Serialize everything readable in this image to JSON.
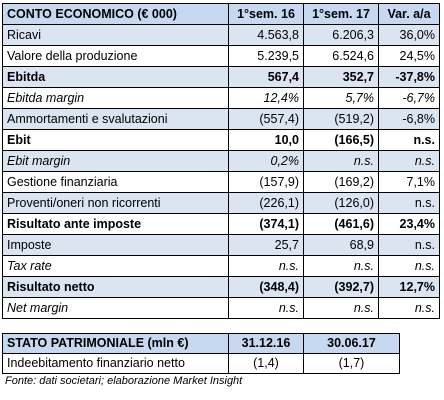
{
  "conto_economico": {
    "header": [
      "CONTO ECONOMICO (€ 000)",
      "1°sem. 16",
      "1°sem. 17",
      "Var. a/a"
    ],
    "rows": [
      {
        "label": "Ricavi",
        "h1_16": "4.563,8",
        "h1_17": "6.206,3",
        "var": "36,0%",
        "style": "blue"
      },
      {
        "label": "Valore della produzione",
        "h1_16": "5.239,5",
        "h1_17": "6.524,6",
        "var": "24,5%",
        "style": "white"
      },
      {
        "label": "Ebitda",
        "h1_16": "567,4",
        "h1_17": "352,7",
        "var": "-37,8%",
        "style": "blue-bold"
      },
      {
        "label": "Ebitda margin",
        "h1_16": "12,4%",
        "h1_17": "5,7%",
        "var": "-6,7%",
        "style": "white-italic"
      },
      {
        "label": "Ammortamenti e svalutazioni",
        "h1_16": "(557,4)",
        "h1_17": "(519,2)",
        "var": "-6,8%",
        "style": "blue"
      },
      {
        "label": "Ebit",
        "h1_16": "10,0",
        "h1_17": "(166,5)",
        "var": "n.s.",
        "style": "white-bold"
      },
      {
        "label": "Ebit margin",
        "h1_16": "0,2%",
        "h1_17": "n.s.",
        "var": "n.s.",
        "style": "blue-italic"
      },
      {
        "label": "Gestione finanziaria",
        "h1_16": "(157,9)",
        "h1_17": "(169,2)",
        "var": "7,1%",
        "style": "white"
      },
      {
        "label": "Proventi/oneri non ricorrenti",
        "h1_16": "(226,1)",
        "h1_17": "(126,0)",
        "var": "n.s.",
        "style": "blue"
      },
      {
        "label": "Risultato ante imposte",
        "h1_16": "(374,1)",
        "h1_17": "(461,6)",
        "var": "23,4%",
        "style": "white-bold"
      },
      {
        "label": "Imposte",
        "h1_16": "25,7",
        "h1_17": "68,9",
        "var": "n.s.",
        "style": "blue"
      },
      {
        "label": "Tax rate",
        "h1_16": "n.s.",
        "h1_17": "n.s.",
        "var": "n.s.",
        "style": "white-italic"
      },
      {
        "label": "Risultato netto",
        "h1_16": "(348,4)",
        "h1_17": "(392,7)",
        "var": "12,7%",
        "style": "blue-bold"
      },
      {
        "label": "Net margin",
        "h1_16": "n.s.",
        "h1_17": "n.s.",
        "var": "n.s.",
        "style": "white-italic"
      }
    ]
  },
  "stato_patrimoniale": {
    "header": [
      "STATO PATRIMONIALE (mln €)",
      "31.12.16",
      "30.06.17"
    ],
    "rows": [
      {
        "label": "Indeebitamento finanziario netto",
        "d1": "(1,4)",
        "d2": "(1,7)"
      }
    ]
  },
  "source_note": "Fonte: dati societari; elaborazione Market Insight",
  "colors": {
    "header_bg": "#c6d9f1",
    "band_bg": "#dbe5f1",
    "border": "#000000"
  }
}
